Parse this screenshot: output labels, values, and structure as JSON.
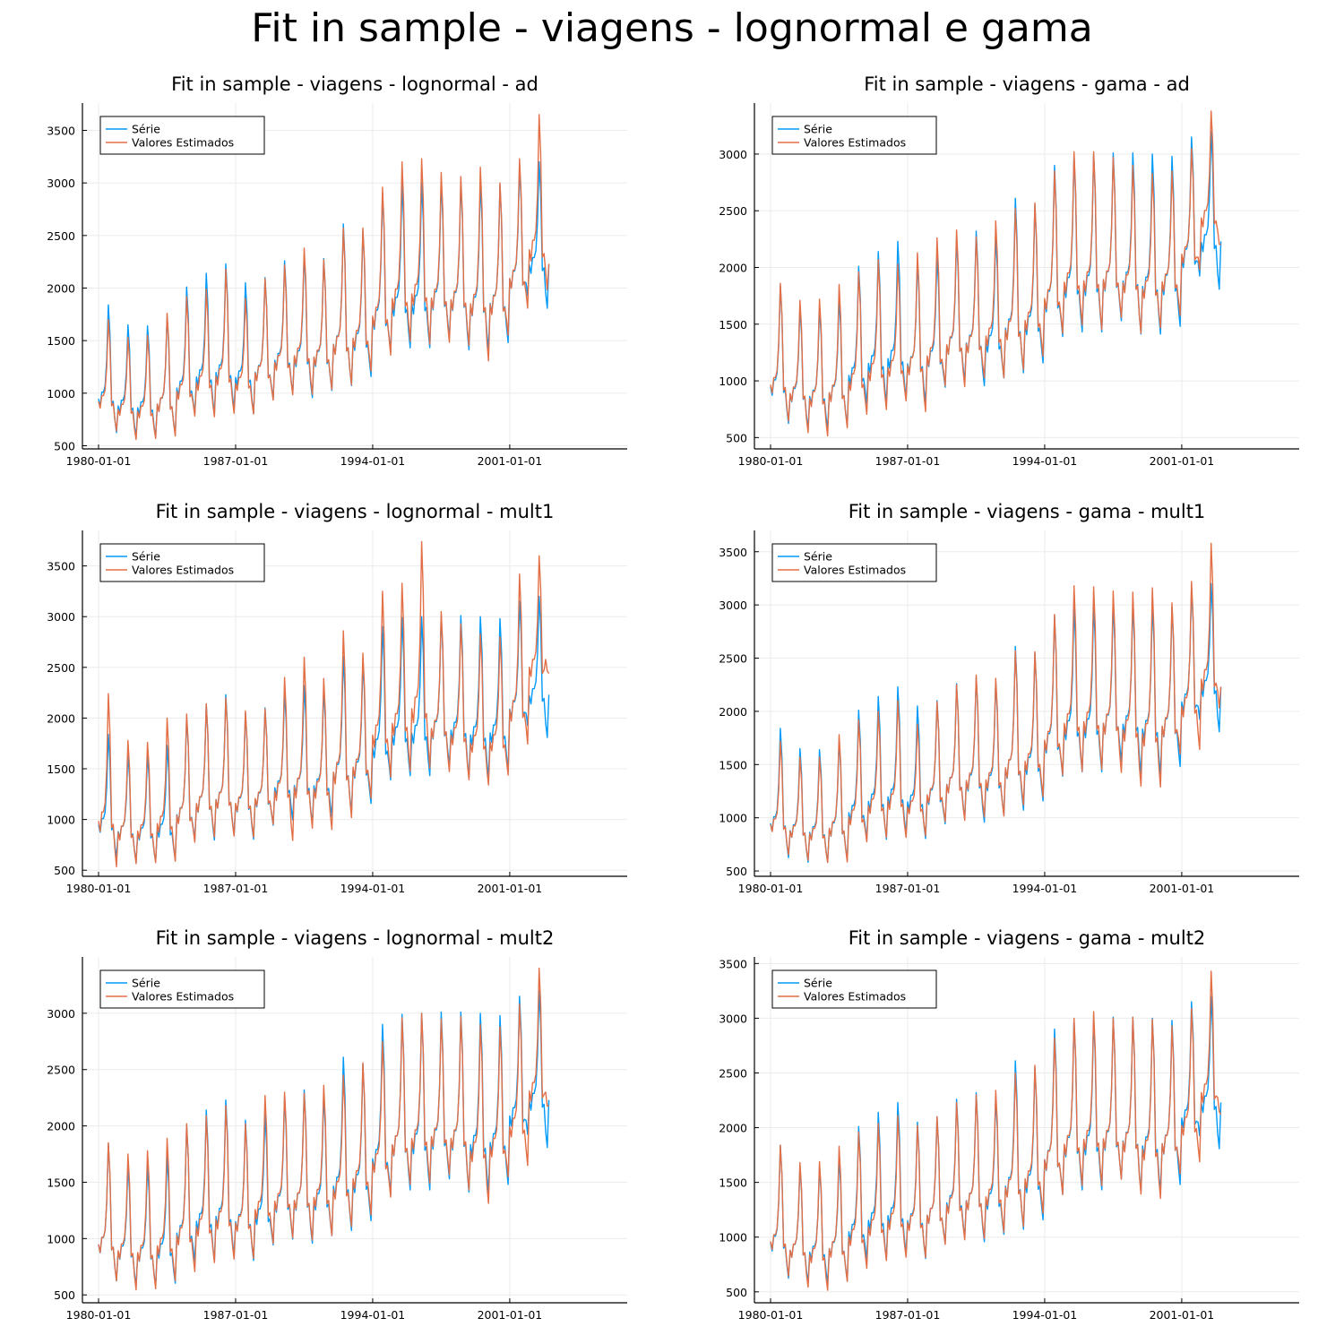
{
  "page_title": "Fit in sample - viagens - lognormal e gama",
  "colors": {
    "serie": "#009af9",
    "estimado": "#e26f46",
    "grid": "#ebebeb",
    "axis": "#000000"
  },
  "chart_data": [
    {
      "type": "line",
      "title": "Fit in sample - viagens - lognormal - ad",
      "xlabel": "",
      "ylabel": "",
      "yticks": [
        500,
        1000,
        1500,
        2000,
        2500,
        3000,
        3500
      ],
      "ylim": [
        470,
        3760
      ],
      "xticks": [
        "1980-01-01",
        "1987-01-01",
        "1994-01-01",
        "2001-01-01"
      ],
      "x_start": "1980-01",
      "x_end": "2005-12",
      "frequency": "monthly",
      "grid": true,
      "legend": "top-left",
      "series": [
        {
          "name": "Série",
          "color": "#009af9",
          "peaks": [
            1840,
            1650,
            1640,
            1730,
            2010,
            2140,
            2230,
            2050,
            2100,
            2260,
            2320,
            2280,
            2610,
            2550,
            2900,
            2990,
            3000,
            3010,
            3010,
            3000,
            2980,
            3150,
            3200
          ],
          "troughs": [
            600,
            560,
            560,
            580,
            770,
            770,
            820,
            780,
            920,
            970,
            930,
            1000,
            1040,
            1130,
            1360,
            1400,
            1400,
            1500,
            1380,
            1380,
            1450,
            1900,
            1780
          ],
          "last": 2230
        },
        {
          "name": "Valores Estimados",
          "color": "#e26f46",
          "peaks": [
            1700,
            1530,
            1550,
            1760,
            1920,
            1990,
            2180,
            1900,
            2090,
            2220,
            2380,
            2270,
            2570,
            2570,
            2960,
            3200,
            3230,
            3100,
            3060,
            3150,
            3000,
            3230,
            3650
          ],
          "troughs": [
            620,
            540,
            550,
            570,
            760,
            750,
            780,
            780,
            910,
            960,
            960,
            1010,
            1050,
            1180,
            1330,
            1460,
            1430,
            1450,
            1420,
            1270,
            1520,
            1780,
            1950
          ],
          "last": 2230
        }
      ]
    },
    {
      "type": "line",
      "title": "Fit in sample - viagens - gama - ad",
      "xlabel": "",
      "ylabel": "",
      "yticks": [
        500,
        1000,
        1500,
        2000,
        2500,
        3000
      ],
      "ylim": [
        400,
        3450
      ],
      "xticks": [
        "1980-01-01",
        "1987-01-01",
        "1994-01-01",
        "2001-01-01"
      ],
      "x_start": "1980-01",
      "x_end": "2005-12",
      "frequency": "monthly",
      "grid": true,
      "legend": "top-left",
      "series": [
        {
          "name": "Série",
          "color": "#009af9",
          "peaks": [
            1840,
            1650,
            1640,
            1730,
            2010,
            2140,
            2230,
            2050,
            2100,
            2260,
            2320,
            2280,
            2610,
            2550,
            2900,
            2990,
            3000,
            3010,
            3010,
            3000,
            2980,
            3150,
            3200
          ],
          "troughs": [
            600,
            560,
            560,
            580,
            770,
            770,
            820,
            780,
            920,
            970,
            930,
            1000,
            1040,
            1130,
            1360,
            1400,
            1400,
            1500,
            1380,
            1380,
            1450,
            1900,
            1780
          ],
          "last": 2230
        },
        {
          "name": "Valores Estimados",
          "color": "#e26f46",
          "peaks": [
            1860,
            1710,
            1720,
            1850,
            1960,
            2070,
            2030,
            2130,
            2260,
            2330,
            2270,
            2410,
            2520,
            2570,
            2850,
            3020,
            3020,
            2970,
            2900,
            2830,
            2850,
            3050,
            3380
          ],
          "troughs": [
            620,
            520,
            490,
            560,
            680,
            720,
            800,
            700,
            930,
            920,
            1000,
            1000,
            1070,
            1190,
            1390,
            1460,
            1420,
            1530,
            1390,
            1440,
            1550,
            1960,
            2180
          ],
          "last": 2200
        }
      ]
    },
    {
      "type": "line",
      "title": "Fit in sample - viagens - lognormal - mult1",
      "xlabel": "",
      "ylabel": "",
      "yticks": [
        500,
        1000,
        1500,
        2000,
        2500,
        3000,
        3500
      ],
      "ylim": [
        440,
        3850
      ],
      "xticks": [
        "1980-01-01",
        "1987-01-01",
        "1994-01-01",
        "2001-01-01"
      ],
      "x_start": "1980-01",
      "x_end": "2005-12",
      "frequency": "monthly",
      "grid": true,
      "legend": "top-left",
      "series": [
        {
          "name": "Série",
          "color": "#009af9",
          "peaks": [
            1840,
            1650,
            1640,
            1730,
            2010,
            2140,
            2230,
            2050,
            2100,
            2260,
            2320,
            2280,
            2610,
            2550,
            2900,
            2990,
            3000,
            3010,
            3010,
            3000,
            2980,
            3150,
            3200
          ],
          "troughs": [
            600,
            560,
            560,
            580,
            770,
            770,
            820,
            780,
            920,
            970,
            930,
            1000,
            1040,
            1130,
            1360,
            1400,
            1400,
            1500,
            1380,
            1380,
            1450,
            1900,
            1780
          ],
          "last": 2230
        },
        {
          "name": "Valores Estimados",
          "color": "#e26f46",
          "peaks": [
            2240,
            1780,
            1760,
            2000,
            2040,
            2140,
            2200,
            2070,
            2090,
            2400,
            2600,
            2390,
            2860,
            2640,
            3250,
            3330,
            3740,
            3050,
            2930,
            2830,
            2800,
            3420,
            3600
          ],
          "troughs": [
            500,
            540,
            550,
            560,
            750,
            800,
            810,
            800,
            930,
            760,
            880,
            870,
            980,
            1180,
            1380,
            1440,
            1460,
            1440,
            1360,
            1310,
            1410,
            1710,
            2440
          ],
          "last": 2440
        }
      ]
    },
    {
      "type": "line",
      "title": "Fit in sample - viagens - gama - mult1",
      "xlabel": "",
      "ylabel": "",
      "yticks": [
        500,
        1000,
        1500,
        2000,
        2500,
        3000,
        3500
      ],
      "ylim": [
        450,
        3700
      ],
      "xticks": [
        "1980-01-01",
        "1987-01-01",
        "1994-01-01",
        "2001-01-01"
      ],
      "x_start": "1980-01",
      "x_end": "2005-12",
      "frequency": "monthly",
      "grid": true,
      "legend": "top-left",
      "series": [
        {
          "name": "Série",
          "color": "#009af9",
          "peaks": [
            1840,
            1650,
            1640,
            1730,
            2010,
            2140,
            2230,
            2050,
            2100,
            2260,
            2320,
            2280,
            2610,
            2550,
            2900,
            2990,
            3000,
            3010,
            3010,
            3000,
            2980,
            3150,
            3200
          ],
          "troughs": [
            600,
            560,
            560,
            580,
            770,
            770,
            820,
            780,
            920,
            970,
            930,
            1000,
            1040,
            1130,
            1360,
            1400,
            1400,
            1500,
            1380,
            1380,
            1450,
            1900,
            1780
          ],
          "last": 2230
        },
        {
          "name": "Valores Estimados",
          "color": "#e26f46",
          "peaks": [
            1720,
            1570,
            1570,
            1780,
            1920,
            2000,
            2100,
            1880,
            2090,
            2250,
            2340,
            2310,
            2570,
            2560,
            2910,
            3180,
            3170,
            3130,
            3120,
            3160,
            3020,
            3220,
            3580
          ],
          "troughs": [
            630,
            580,
            560,
            560,
            750,
            790,
            790,
            810,
            940,
            950,
            980,
            990,
            1090,
            1170,
            1370,
            1400,
            1420,
            1390,
            1260,
            1250,
            1570,
            1610,
            2000
          ],
          "last": 2230
        }
      ]
    },
    {
      "type": "line",
      "title": "Fit in sample - viagens - lognormal - mult2",
      "xlabel": "",
      "ylabel": "",
      "yticks": [
        500,
        1000,
        1500,
        2000,
        2500,
        3000
      ],
      "ylim": [
        430,
        3500
      ],
      "xticks": [
        "1980-01-01",
        "1987-01-01",
        "1994-01-01",
        "2001-01-01"
      ],
      "x_start": "1980-01",
      "x_end": "2005-12",
      "frequency": "monthly",
      "grid": true,
      "legend": "top-left",
      "series": [
        {
          "name": "Série",
          "color": "#009af9",
          "peaks": [
            1840,
            1650,
            1640,
            1730,
            2010,
            2140,
            2230,
            2050,
            2100,
            2260,
            2320,
            2280,
            2610,
            2550,
            2900,
            2990,
            3000,
            3010,
            3010,
            3000,
            2980,
            3150,
            3200
          ],
          "troughs": [
            600,
            560,
            560,
            580,
            770,
            770,
            820,
            780,
            920,
            970,
            930,
            1000,
            1040,
            1130,
            1360,
            1400,
            1400,
            1500,
            1380,
            1380,
            1450,
            1900,
            1780
          ],
          "last": 2230
        },
        {
          "name": "Valores Estimados",
          "color": "#e26f46",
          "peaks": [
            1850,
            1750,
            1780,
            1890,
            2020,
            2090,
            2180,
            2020,
            2270,
            2300,
            2290,
            2360,
            2450,
            2560,
            2750,
            2960,
            3000,
            2950,
            2970,
            2900,
            2880,
            3080,
            3400
          ],
          "troughs": [
            600,
            520,
            530,
            600,
            680,
            760,
            790,
            800,
            930,
            980,
            960,
            1000,
            1080,
            1180,
            1340,
            1450,
            1460,
            1540,
            1400,
            1280,
            1520,
            1620,
            2150
          ],
          "last": 2180
        }
      ]
    },
    {
      "type": "line",
      "title": "Fit in sample - viagens - gama - mult2",
      "xlabel": "",
      "ylabel": "",
      "yticks": [
        500,
        1000,
        1500,
        2000,
        2500,
        3000,
        3500
      ],
      "ylim": [
        400,
        3560
      ],
      "xticks": [
        "1980-01-01",
        "1987-01-01",
        "1994-01-01",
        "2001-01-01"
      ],
      "x_start": "1980-01",
      "x_end": "2005-12",
      "frequency": "monthly",
      "grid": true,
      "legend": "top-left",
      "series": [
        {
          "name": "Série",
          "color": "#009af9",
          "peaks": [
            1840,
            1650,
            1640,
            1730,
            2010,
            2140,
            2230,
            2050,
            2100,
            2260,
            2320,
            2280,
            2610,
            2550,
            2900,
            2990,
            3000,
            3010,
            3010,
            3000,
            2980,
            3150,
            3200
          ],
          "troughs": [
            600,
            560,
            560,
            580,
            770,
            770,
            820,
            780,
            920,
            970,
            930,
            1000,
            1040,
            1130,
            1360,
            1400,
            1400,
            1500,
            1380,
            1380,
            1450,
            1900,
            1780
          ],
          "last": 2230
        },
        {
          "name": "Valores Estimados",
          "color": "#e26f46",
          "peaks": [
            1840,
            1680,
            1690,
            1830,
            1960,
            2040,
            2110,
            2020,
            2100,
            2230,
            2300,
            2340,
            2500,
            2570,
            2820,
            3000,
            3060,
            3000,
            3010,
            2990,
            2930,
            3090,
            3430
          ],
          "troughs": [
            620,
            520,
            490,
            570,
            690,
            760,
            790,
            790,
            910,
            950,
            960,
            1020,
            1070,
            1190,
            1360,
            1440,
            1440,
            1500,
            1360,
            1320,
            1550,
            1660,
            2120
          ],
          "last": 2120
        }
      ]
    }
  ]
}
